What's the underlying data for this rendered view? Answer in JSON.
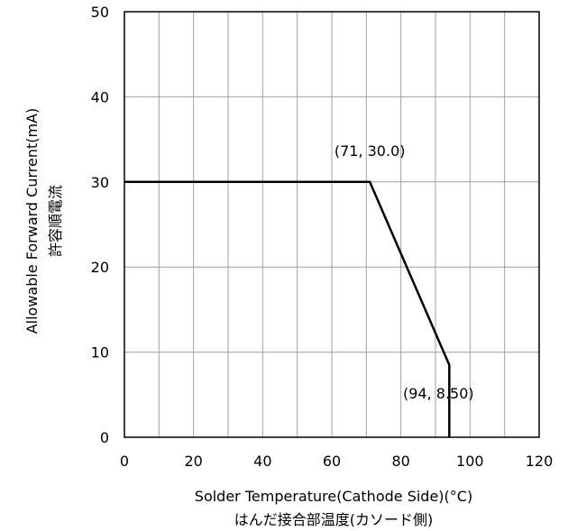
{
  "chart_data": {
    "type": "line",
    "xlabel": "Solder Temperature(Cathode Side)(°C)",
    "xlabel_sub": "はんだ接合部温度(カソード側)",
    "ylabel": "Allowable Forward Current(mA)",
    "ylabel_sub": "許容順電流",
    "xlim": [
      0,
      120
    ],
    "ylim": [
      0,
      50
    ],
    "x_ticks": [
      0,
      20,
      40,
      60,
      80,
      100,
      120
    ],
    "y_ticks": [
      0,
      10,
      20,
      30,
      40,
      50
    ],
    "x_grid_step": 10,
    "y_grid_step": 10,
    "grid": true,
    "series": [
      {
        "x": [
          0,
          71,
          94,
          94
        ],
        "y": [
          30.0,
          30.0,
          8.5,
          0
        ],
        "color": "#000000"
      }
    ],
    "annotations": [
      {
        "text": "(71, 30.0)",
        "x": 71,
        "y": 30.0
      },
      {
        "text": "(94, 8.50)",
        "x": 94,
        "y": 8.5
      }
    ]
  }
}
